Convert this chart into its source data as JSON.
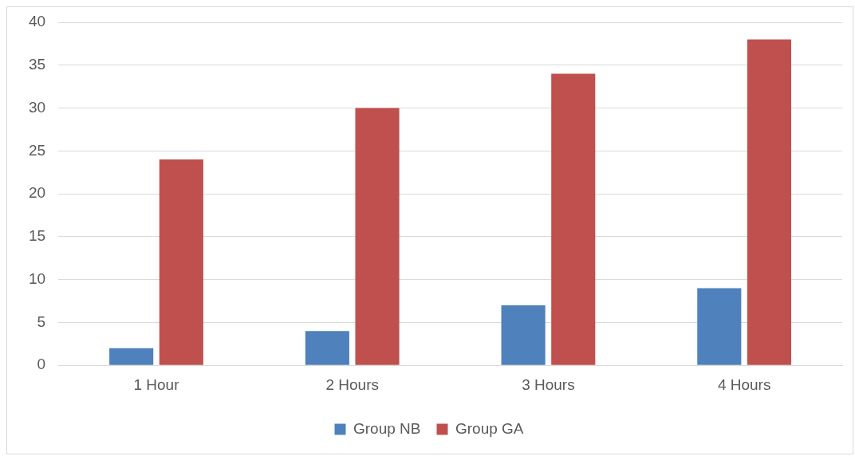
{
  "chart_data": {
    "type": "bar",
    "categories": [
      "1 Hour",
      "2 Hours",
      "3 Hours",
      "4 Hours"
    ],
    "series": [
      {
        "name": "Group NB",
        "color": "#4f81bd",
        "values": [
          2,
          4,
          7,
          9
        ]
      },
      {
        "name": "Group GA",
        "color": "#c0504d",
        "values": [
          24,
          30,
          34,
          38
        ]
      }
    ],
    "ylim": [
      0,
      40
    ],
    "yticks": [
      0,
      5,
      10,
      15,
      20,
      25,
      30,
      35,
      40
    ],
    "grid": "y",
    "legend": "bottom"
  }
}
